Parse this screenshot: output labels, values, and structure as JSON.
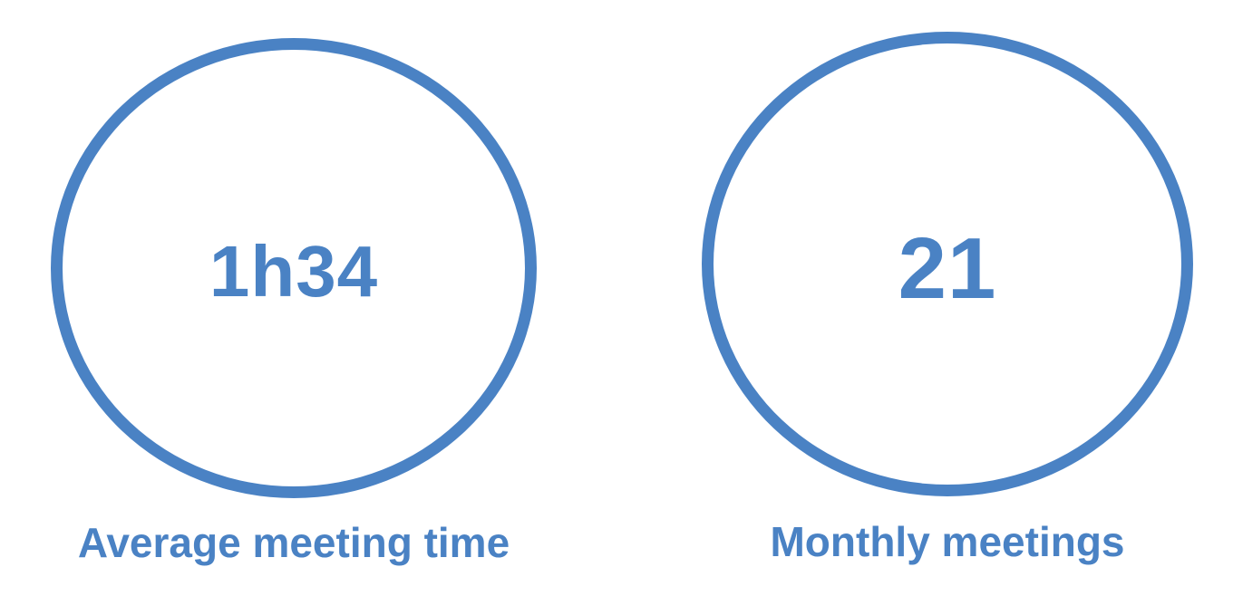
{
  "theme": {
    "accent": "#4a82c4",
    "background": "#ffffff"
  },
  "kpis": [
    {
      "value": "1h34",
      "label": "Average meeting time"
    },
    {
      "value": "21",
      "label": "Monthly meetings"
    }
  ]
}
